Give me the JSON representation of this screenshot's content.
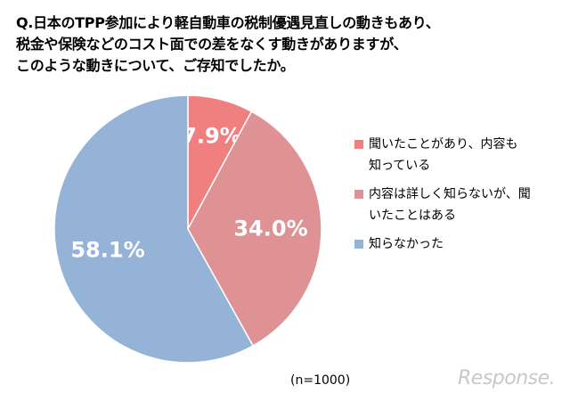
{
  "title_lines": [
    "Q.日本のTPP参加により軽自動車の税制優遇見直しの動きもあり、",
    "税金や保険などのコスト面での差をなくす動きがありますが、",
    "このような動きについて、ご存知でしたか。"
  ],
  "note": "(n=1000)",
  "watermark": "Response.",
  "chart_data": {
    "type": "pie",
    "slices": [
      {
        "label": "聞いたことがあり、内容も知っている",
        "legend_lines": [
          "聞いたことがあり、内容も",
          "知っている"
        ],
        "value": 7.9,
        "value_label": "7.9%",
        "color": "#f08080"
      },
      {
        "label": "内容は詳しく知らないが、聞いたことはある",
        "legend_lines": [
          "内容は詳しく知らないが、聞",
          "いたことはある"
        ],
        "value": 34.0,
        "value_label": "34.0%",
        "color": "#df9293"
      },
      {
        "label": "知らなかった",
        "legend_lines": [
          "知らなかった"
        ],
        "value": 58.1,
        "value_label": "58.1%",
        "color": "#95b3d7"
      }
    ],
    "start_angle": "12 o'clock",
    "direction": "clockwise",
    "legend_position": "right"
  }
}
